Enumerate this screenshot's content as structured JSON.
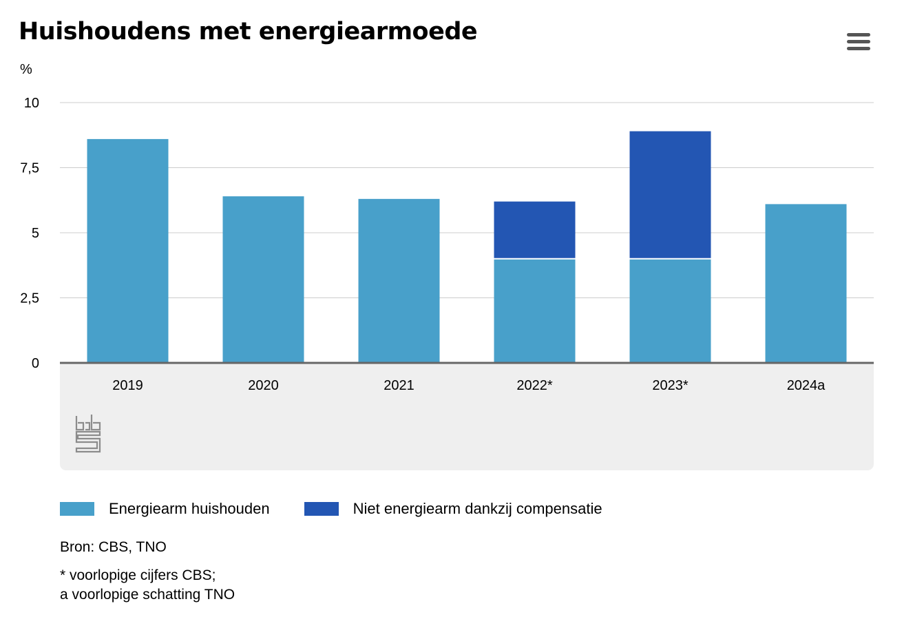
{
  "title": "Huishoudens met energiearmoede",
  "unit": "%",
  "chart_data": {
    "type": "bar",
    "stacked": true,
    "categories": [
      "2019",
      "2020",
      "2021",
      "2022*",
      "2023*",
      "2024a"
    ],
    "series": [
      {
        "name": "Energiearm huishouden",
        "color": "#48a0ca",
        "values": [
          8.6,
          6.4,
          6.3,
          4.0,
          4.0,
          6.1
        ]
      },
      {
        "name": "Niet energiearm dankzij compensatie",
        "color": "#2356b3",
        "values": [
          0,
          0,
          0,
          2.2,
          4.9,
          0
        ]
      }
    ],
    "ylim": [
      0,
      10
    ],
    "yticks": [
      {
        "value": 0,
        "label": "0"
      },
      {
        "value": 2.5,
        "label": "2,5"
      },
      {
        "value": 5,
        "label": "5"
      },
      {
        "value": 7.5,
        "label": "7,5"
      },
      {
        "value": 10,
        "label": "10"
      }
    ],
    "grid": true,
    "legend_position": "bottom"
  },
  "logo": {
    "name": "cbs"
  },
  "source": "Bron: CBS, TNO",
  "notes": [
    "* voorlopige cijfers CBS;",
    "a voorlopige schatting TNO"
  ],
  "colors": {
    "light_bar": "#48a0ca",
    "dark_bar": "#2356b3",
    "axis_panel": "#efefef",
    "axis_line": "#666666",
    "grid": "#cccccc"
  }
}
